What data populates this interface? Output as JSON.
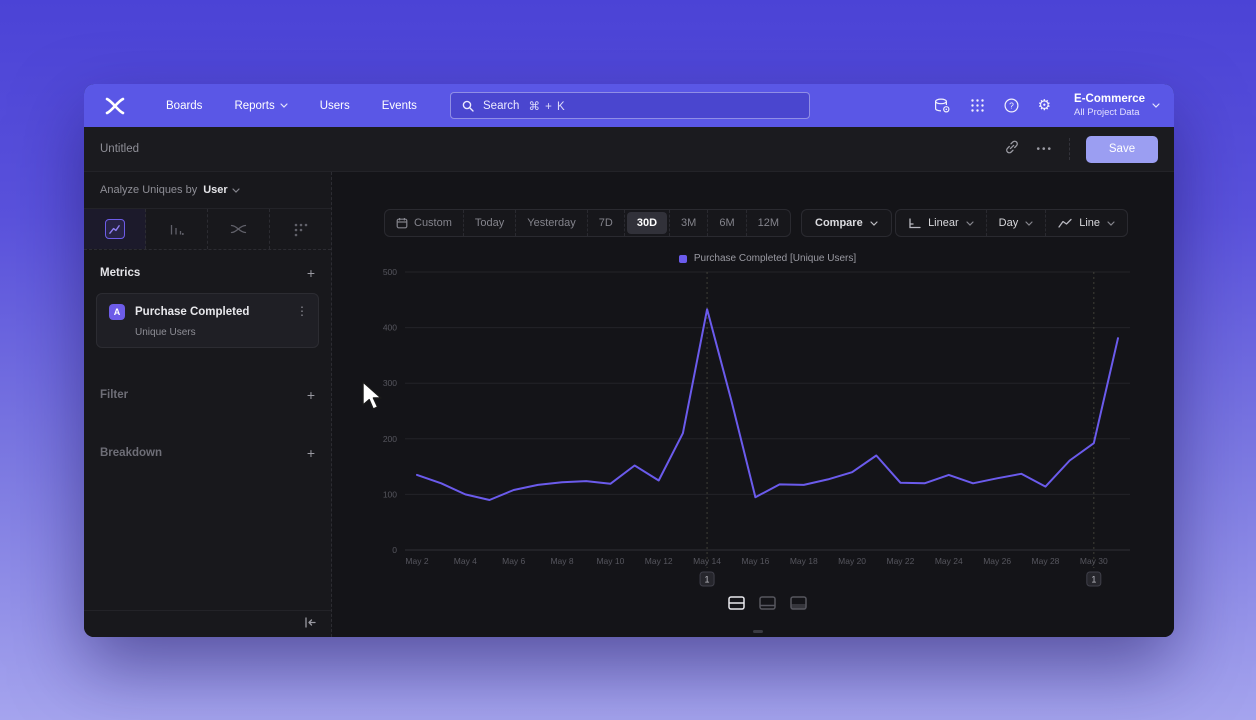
{
  "header": {
    "nav": [
      {
        "label": "Boards",
        "chevron": false
      },
      {
        "label": "Reports",
        "chevron": true
      },
      {
        "label": "Users",
        "chevron": false
      },
      {
        "label": "Events",
        "chevron": false
      }
    ],
    "search": {
      "placeholder": "Search",
      "shortcut": "⌘ + K"
    },
    "project": {
      "name": "E-Commerce",
      "scope": "All Project Data"
    }
  },
  "titlebar": {
    "title": "Untitled",
    "save_label": "Save"
  },
  "sidebar": {
    "analyze_prefix": "Analyze Uniques by",
    "analyze_value": "User",
    "metrics_heading": "Metrics",
    "filter_heading": "Filter",
    "breakdown_heading": "Breakdown",
    "add_symbol": "+",
    "metric_card": {
      "badge": "A",
      "title": "Purchase Completed",
      "subtitle": "Unique Users"
    }
  },
  "toolbar": {
    "ranges": [
      "Custom",
      "Today",
      "Yesterday",
      "7D",
      "30D",
      "3M",
      "6M",
      "12M"
    ],
    "selected_range": "30D",
    "compare_label": "Compare",
    "scale_label": "Linear",
    "interval_label": "Day",
    "chart_type_label": "Line"
  },
  "icons": {
    "ellipsis": "•••",
    "kebab": "⋮",
    "help": "?",
    "gear": "⚙",
    "search": "magnifier-shape",
    "logo": "mixpanel-x-mark"
  },
  "colors": {
    "brand_purple": "#5a57e6",
    "accent": "#6d5ce8",
    "series": "#6b5bec",
    "save_button": "#9b9ef2",
    "window_bg": "#141418",
    "sidebar_bg": "#18181c"
  },
  "chart_data": {
    "type": "line",
    "title": "",
    "legend": [
      "Purchase Completed [Unique Users]"
    ],
    "x": [
      "May 2",
      "May 3",
      "May 4",
      "May 5",
      "May 6",
      "May 7",
      "May 8",
      "May 9",
      "May 10",
      "May 11",
      "May 12",
      "May 13",
      "May 14",
      "May 15",
      "May 16",
      "May 17",
      "May 18",
      "May 19",
      "May 20",
      "May 21",
      "May 22",
      "May 23",
      "May 24",
      "May 25",
      "May 26",
      "May 27",
      "May 28",
      "May 29",
      "May 30",
      "May 31"
    ],
    "x_tick_indices": [
      0,
      2,
      4,
      6,
      8,
      10,
      12,
      14,
      16,
      18,
      20,
      22,
      24,
      26,
      28
    ],
    "values": [
      135,
      120,
      100,
      90,
      108,
      117,
      122,
      124,
      119,
      152,
      125,
      210,
      433,
      270,
      95,
      118,
      117,
      127,
      140,
      170,
      121,
      120,
      135,
      120,
      129,
      137,
      114,
      161,
      192,
      381
    ],
    "series": [
      {
        "name": "Purchase Completed [Unique Users]",
        "color": "#6b5bec"
      }
    ],
    "ylim": [
      0,
      500
    ],
    "y_ticks": [
      0,
      100,
      200,
      300,
      400,
      500
    ],
    "grid": "horizontal",
    "legend_position": "top-center",
    "annotations": [
      {
        "label": "1",
        "index": 12,
        "date": "May 14"
      },
      {
        "label": "1",
        "index": 28,
        "date": "May 30"
      }
    ]
  }
}
